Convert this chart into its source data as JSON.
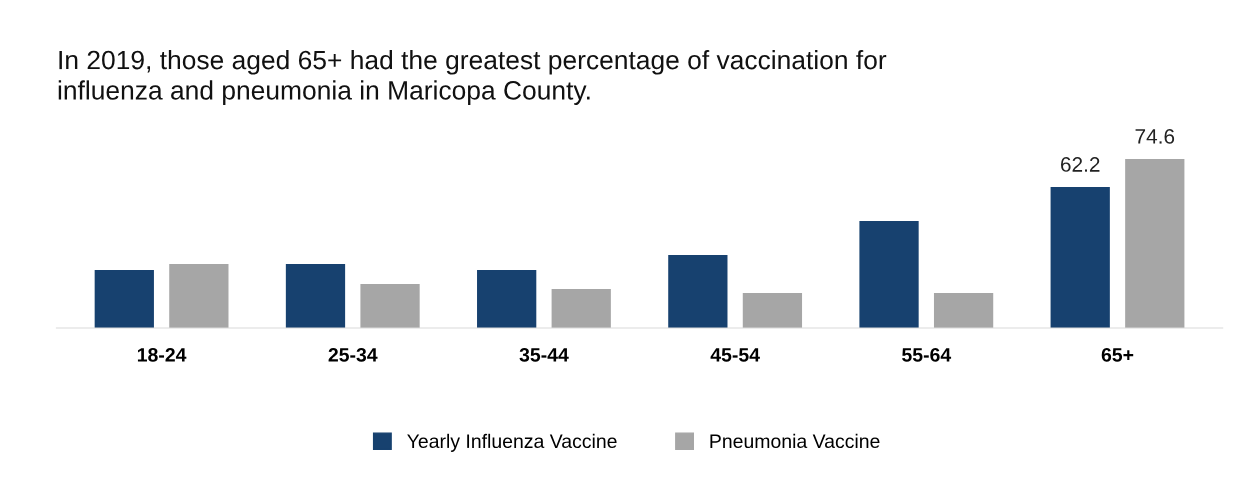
{
  "chart_data": {
    "type": "bar",
    "title": "In 2019, those aged 65+ had the greatest percentage of vaccination for\ninfluenza and pneumonia in Maricopa County.",
    "categories": [
      "18-24",
      "25-34",
      "35-44",
      "45-54",
      "55-64",
      "65+"
    ],
    "series": [
      {
        "name": "Yearly Influenza Vaccine",
        "color": "#17416f",
        "values": [
          25.6,
          28.2,
          25.6,
          32.2,
          47.2,
          62.2
        ],
        "value_labels": [
          null,
          null,
          null,
          null,
          null,
          "62.2"
        ]
      },
      {
        "name": "Pneumonia Vaccine",
        "color": "#a6a6a6",
        "values": [
          28.2,
          19.4,
          17.2,
          15.4,
          15.4,
          74.6
        ],
        "value_labels": [
          null,
          null,
          null,
          null,
          null,
          "74.6"
        ]
      }
    ],
    "tick_labels": "x",
    "grid": false,
    "legend": "bottom"
  }
}
